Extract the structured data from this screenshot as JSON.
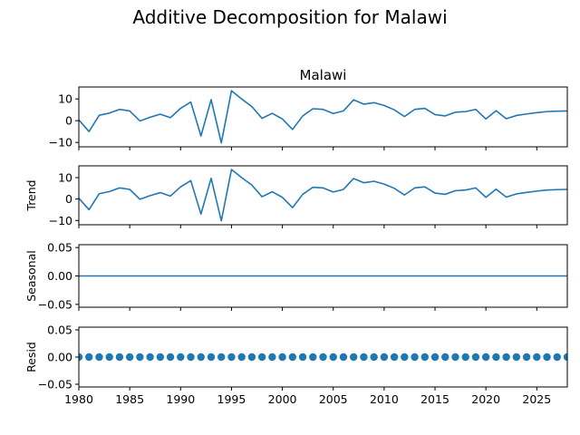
{
  "figure": {
    "title": "Additive Decomposition for Malawi"
  },
  "chart_data": {
    "type": "line",
    "x_label_ticks": [
      "1980",
      "1985",
      "1990",
      "1995",
      "2000",
      "2005",
      "2010",
      "2015",
      "2020",
      "2025"
    ],
    "x_tick_values": [
      1980,
      1985,
      1990,
      1995,
      2000,
      2005,
      2010,
      2015,
      2020,
      2025
    ],
    "xlim": [
      1980,
      2028
    ],
    "x": [
      1980,
      1981,
      1982,
      1983,
      1984,
      1985,
      1986,
      1987,
      1988,
      1989,
      1990,
      1991,
      1992,
      1993,
      1994,
      1995,
      1996,
      1997,
      1998,
      1999,
      2000,
      2001,
      2002,
      2003,
      2004,
      2005,
      2006,
      2007,
      2008,
      2009,
      2010,
      2011,
      2012,
      2013,
      2014,
      2015,
      2016,
      2017,
      2018,
      2019,
      2020,
      2021,
      2022,
      2023,
      2024,
      2025,
      2026,
      2027,
      2028
    ],
    "panels": [
      {
        "key": "observed",
        "title": "Malawi",
        "ylabel": "",
        "kind": "line",
        "ylim": [
          -12,
          15.5
        ],
        "y_ticks": [
          -10,
          0,
          10
        ],
        "y_tick_labels": [
          "−10",
          "0",
          "10"
        ],
        "values": [
          0.4,
          -5.0,
          2.5,
          3.5,
          5.2,
          4.5,
          -0.1,
          1.6,
          3.0,
          1.4,
          5.7,
          8.6,
          -7.0,
          9.7,
          -10.2,
          13.8,
          10.0,
          6.5,
          1.1,
          3.4,
          0.8,
          -4.0,
          2.2,
          5.5,
          5.2,
          3.3,
          4.5,
          9.6,
          7.6,
          8.3,
          7.0,
          5.0,
          1.9,
          5.2,
          5.7,
          2.8,
          2.2,
          3.9,
          4.2,
          5.2,
          0.8,
          4.6,
          0.9,
          2.4,
          3.1,
          3.7,
          4.2,
          4.4,
          4.5
        ]
      },
      {
        "key": "trend",
        "title": "",
        "ylabel": "Trend",
        "kind": "line",
        "ylim": [
          -12,
          15.5
        ],
        "y_ticks": [
          -10,
          0,
          10
        ],
        "y_tick_labels": [
          "−10",
          "0",
          "10"
        ],
        "values": [
          0.4,
          -5.0,
          2.5,
          3.5,
          5.2,
          4.5,
          -0.1,
          1.6,
          3.0,
          1.4,
          5.7,
          8.6,
          -7.0,
          9.7,
          -10.2,
          13.8,
          10.0,
          6.5,
          1.1,
          3.4,
          0.8,
          -4.0,
          2.2,
          5.5,
          5.2,
          3.3,
          4.5,
          9.6,
          7.6,
          8.3,
          7.0,
          5.0,
          1.9,
          5.2,
          5.7,
          2.8,
          2.2,
          3.9,
          4.2,
          5.2,
          0.8,
          4.6,
          0.9,
          2.4,
          3.1,
          3.7,
          4.2,
          4.4,
          4.5
        ]
      },
      {
        "key": "seasonal",
        "title": "",
        "ylabel": "Seasonal",
        "kind": "line",
        "ylim": [
          -0.055,
          0.055
        ],
        "y_ticks": [
          -0.05,
          0,
          0.05
        ],
        "y_tick_labels": [
          "−0.05",
          "0.00",
          "0.05"
        ],
        "values": [
          0,
          0,
          0,
          0,
          0,
          0,
          0,
          0,
          0,
          0,
          0,
          0,
          0,
          0,
          0,
          0,
          0,
          0,
          0,
          0,
          0,
          0,
          0,
          0,
          0,
          0,
          0,
          0,
          0,
          0,
          0,
          0,
          0,
          0,
          0,
          0,
          0,
          0,
          0,
          0,
          0,
          0,
          0,
          0,
          0,
          0,
          0,
          0,
          0
        ]
      },
      {
        "key": "resid",
        "title": "",
        "ylabel": "Resid",
        "kind": "scatter",
        "ylim": [
          -0.055,
          0.055
        ],
        "y_ticks": [
          -0.05,
          0,
          0.05
        ],
        "y_tick_labels": [
          "−0.05",
          "0.00",
          "0.05"
        ],
        "values": [
          0,
          0,
          0,
          0,
          0,
          0,
          0,
          0,
          0,
          0,
          0,
          0,
          0,
          0,
          0,
          0,
          0,
          0,
          0,
          0,
          0,
          0,
          0,
          0,
          0,
          0,
          0,
          0,
          0,
          0,
          0,
          0,
          0,
          0,
          0,
          0,
          0,
          0,
          0,
          0,
          0,
          0,
          0,
          0,
          0,
          0,
          0,
          0,
          0
        ]
      }
    ],
    "grid": false,
    "colors": {
      "series": "#1f77b4"
    }
  }
}
